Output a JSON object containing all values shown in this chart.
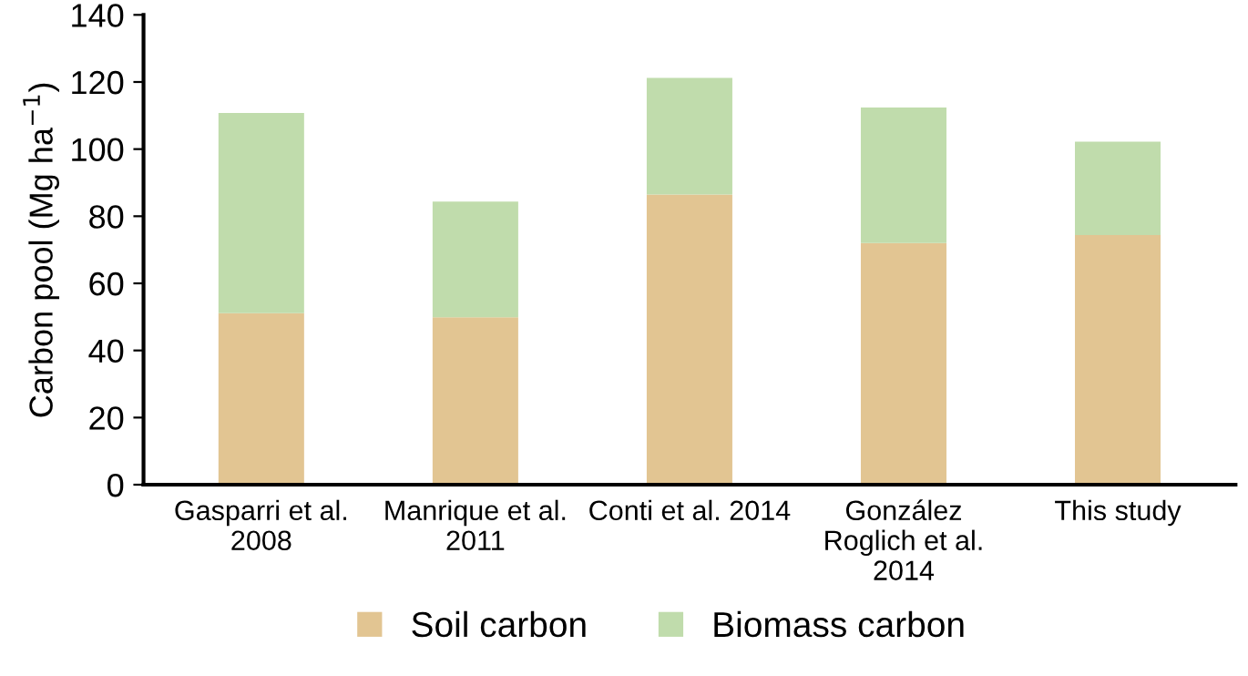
{
  "chart_data": {
    "type": "bar",
    "stacked": true,
    "ylabel": "Carbon pool (Mg ha$^{−1}$)",
    "categories": [
      "Gasparri et al.\n2008",
      "Manrique et al.\n2011",
      "Conti et al. 2014",
      "González\nRoglich et al.\n2014",
      "This study"
    ],
    "series": [
      {
        "name": "Soil carbon",
        "color": "#e2c592",
        "values": [
          51.1,
          49.9,
          86.5,
          72.0,
          74.4
        ]
      },
      {
        "name": "Biomass carbon",
        "color": "#c0dcac",
        "values": [
          59.7,
          34.5,
          34.7,
          40.4,
          27.8
        ]
      }
    ],
    "ylim": [
      0,
      140
    ],
    "yticks": [
      0,
      20,
      40,
      60,
      80,
      100,
      120,
      140
    ],
    "grid": false,
    "legend": "bottom"
  }
}
